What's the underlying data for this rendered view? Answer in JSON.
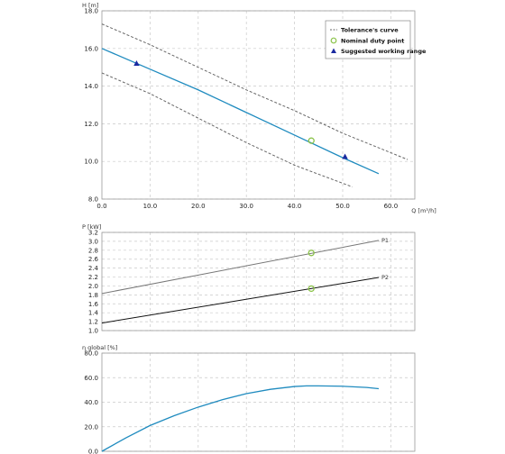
{
  "chart_data": [
    {
      "type": "line",
      "ylabel": "H [m]",
      "xlabel": "Q [m³/h]",
      "xlim": [
        0,
        65
      ],
      "ylim": [
        8,
        18
      ],
      "xticks": [
        "0.0",
        "10.0",
        "20.0",
        "30.0",
        "40.0",
        "50.0",
        "60.0"
      ],
      "yticks": [
        "8.0",
        "10.0",
        "12.0",
        "14.0",
        "16.0",
        "18.0"
      ],
      "grid": true,
      "legend_position": "top-right",
      "legend": [
        "Tolerance's curve",
        "Nominal duty point",
        "Suggested working range"
      ],
      "series": [
        {
          "name": "Pump curve",
          "color": "#1f8bbf",
          "style": "solid",
          "x": [
            0,
            10,
            20,
            30,
            40,
            50,
            57.5
          ],
          "y": [
            16.0,
            14.9,
            13.8,
            12.6,
            11.4,
            10.2,
            9.35
          ]
        },
        {
          "name": "Tolerance's curve",
          "color": "#666666",
          "style": "dashed",
          "x": [
            0,
            10,
            20,
            30,
            40,
            50,
            63.5
          ],
          "y": [
            17.3,
            16.2,
            15.0,
            13.8,
            12.7,
            11.5,
            10.1
          ]
        },
        {
          "name": "Tolerance's curve (lower)",
          "color": "#666666",
          "style": "dashed",
          "x": [
            0,
            10,
            20,
            30,
            40,
            52
          ],
          "y": [
            14.7,
            13.6,
            12.3,
            11.0,
            9.8,
            8.65
          ]
        }
      ],
      "nominal_duty_point": {
        "x": 43.5,
        "y": 11.1,
        "color": "#8bc34a"
      },
      "suggested_working_range": [
        {
          "x": 7.2,
          "y": 15.2
        },
        {
          "x": 50.5,
          "y": 10.25
        }
      ],
      "marker_color": "#1a2aa0"
    },
    {
      "type": "line",
      "ylabel": "P [kW]",
      "xlim": [
        0,
        65
      ],
      "ylim": [
        1.0,
        3.2
      ],
      "yticks": [
        "1.0",
        "1.2",
        "1.4",
        "1.6",
        "1.8",
        "2.0",
        "2.2",
        "2.4",
        "2.6",
        "2.8",
        "3.0",
        "3.2"
      ],
      "grid": true,
      "series": [
        {
          "name": "P1",
          "color": "#777777",
          "x": [
            0,
            57.5
          ],
          "y": [
            1.83,
            3.02
          ]
        },
        {
          "name": "P2",
          "color": "#111111",
          "x": [
            0,
            57.5
          ],
          "y": [
            1.17,
            2.19
          ]
        }
      ],
      "duty_points": [
        {
          "x": 43.5,
          "y": 2.74
        },
        {
          "x": 43.5,
          "y": 1.94
        }
      ]
    },
    {
      "type": "line",
      "ylabel": "η global [%]",
      "xlim": [
        0,
        65
      ],
      "ylim": [
        0,
        80
      ],
      "yticks": [
        "0.0",
        "20.0",
        "40.0",
        "60.0",
        "80.0"
      ],
      "grid": true,
      "series": [
        {
          "name": "η global",
          "color": "#1f8bbf",
          "x": [
            0,
            5,
            10,
            15,
            20,
            25,
            30,
            35,
            40,
            42.5,
            45,
            50,
            55,
            57.5
          ],
          "y": [
            0,
            11,
            21,
            29,
            36,
            42,
            47,
            50.5,
            52.8,
            53.3,
            53.3,
            53.0,
            52.0,
            51.0
          ]
        }
      ]
    }
  ]
}
